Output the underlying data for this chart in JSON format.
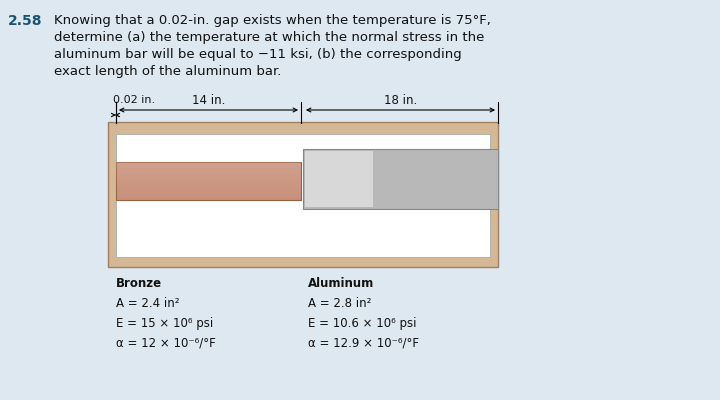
{
  "bg_color": "#dde8f0",
  "title_number": "2.58",
  "title_text": "Knowing that a 0.02-in. gap exists when the temperature is 75°F,\ndetermine (a) the temperature at which the normal stress in the\naluminum bar will be equal to −11 ksi, (b) the corresponding\nexact length of the aluminum bar.",
  "gap_label": "0.02 in.",
  "dim14_label": "14 in.",
  "dim18_label": "18 in.",
  "outer_color": "#d4b896",
  "bronze_color": "#c8907a",
  "alum_color": "#b8b8b8",
  "alum_light": "#d8d8d8",
  "white": "#ffffff",
  "bronze_props": [
    "Bronze",
    "A = 2.4 in²",
    "E = 15 × 10⁶ psi",
    "α = 12 × 10⁻⁶/°F"
  ],
  "alum_props": [
    "Aluminum",
    "A = 2.8 in²",
    "E = 10.6 × 10⁶ psi",
    "α = 12.9 × 10⁻⁶/°F"
  ]
}
